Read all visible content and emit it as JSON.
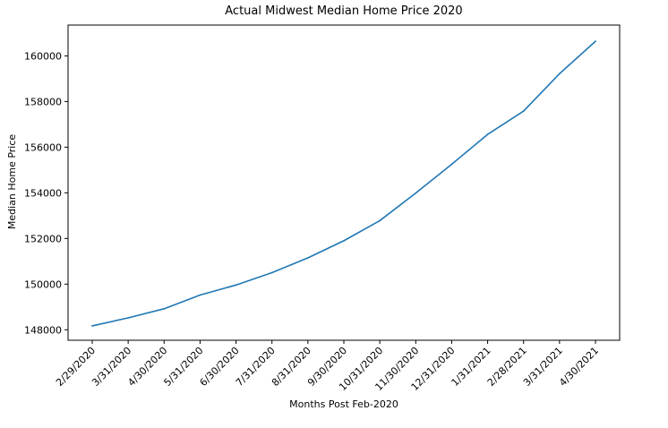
{
  "chart_data": {
    "type": "line",
    "title": "Actual Midwest Median Home Price 2020",
    "xlabel": "Months Post Feb-2020",
    "ylabel": "Median Home Price",
    "categories": [
      "2/29/2020",
      "3/31/2020",
      "4/30/2020",
      "5/31/2020",
      "6/30/2020",
      "7/31/2020",
      "8/31/2020",
      "9/30/2020",
      "10/31/2020",
      "11/30/2020",
      "12/31/2020",
      "1/31/2021",
      "2/28/2021",
      "3/31/2021",
      "4/30/2021"
    ],
    "series": [
      {
        "values": [
          148170,
          148520,
          148920,
          149520,
          149960,
          150500,
          151150,
          151900,
          152780,
          153990,
          155250,
          156560,
          157580,
          159220,
          160640
        ]
      }
    ],
    "ylim": [
      147540,
      161350
    ],
    "yticks": [
      148000,
      150000,
      152000,
      154000,
      156000,
      158000,
      160000
    ],
    "grid": false,
    "line_color": "#1f77b4"
  }
}
